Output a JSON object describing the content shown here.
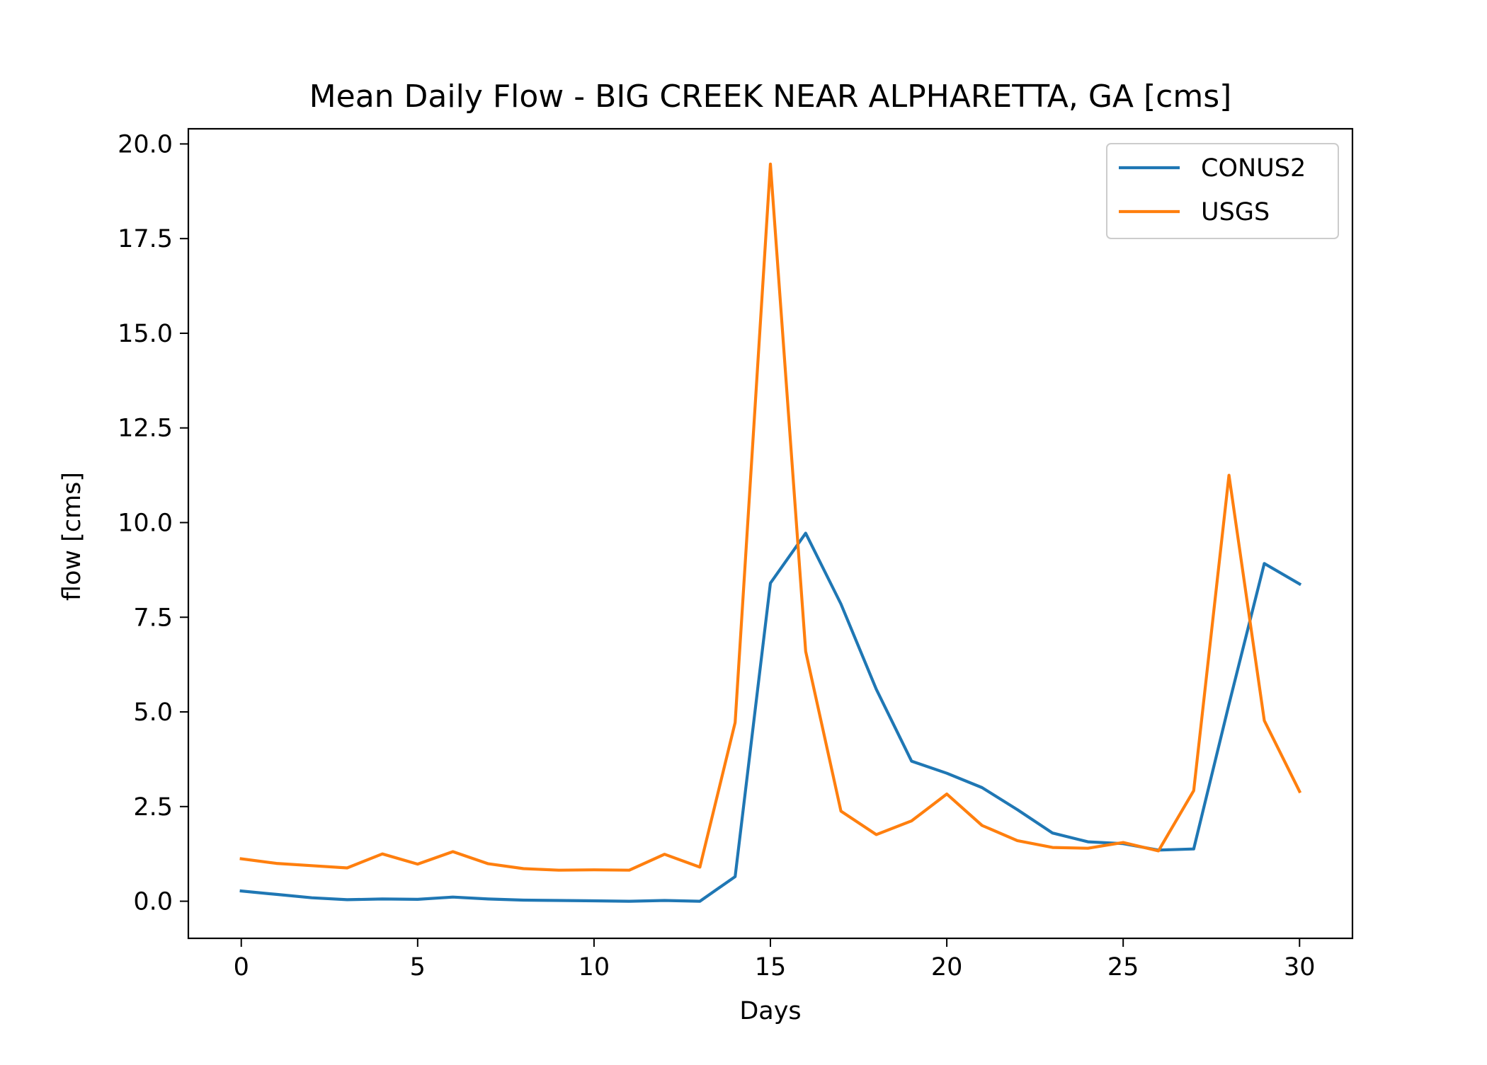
{
  "chart_data": {
    "type": "line",
    "title": "Mean Daily Flow - BIG CREEK NEAR ALPHARETTA, GA [cms]",
    "xlabel": "Days",
    "ylabel": "flow [cms]",
    "xlim": [
      -1.5,
      31.5
    ],
    "ylim": [
      -0.98,
      20.4
    ],
    "xticks": [
      0,
      5,
      10,
      15,
      20,
      25,
      30
    ],
    "xtick_labels": [
      "0",
      "5",
      "10",
      "15",
      "20",
      "25",
      "30"
    ],
    "yticks": [
      0,
      2.5,
      5,
      7.5,
      10,
      12.5,
      15,
      17.5,
      20
    ],
    "ytick_labels": [
      "0.0",
      "2.5",
      "5.0",
      "7.5",
      "10.0",
      "12.5",
      "15.0",
      "17.5",
      "20.0"
    ],
    "grid": false,
    "legend_position": "top-right",
    "x": [
      0,
      1,
      2,
      3,
      4,
      5,
      6,
      7,
      8,
      9,
      10,
      11,
      12,
      13,
      14,
      15,
      16,
      17,
      18,
      19,
      20,
      21,
      22,
      23,
      24,
      25,
      26,
      27,
      28,
      29,
      30
    ],
    "series": [
      {
        "name": "CONUS2",
        "color": "#1f77b4",
        "values": [
          0.27,
          0.18,
          0.09,
          0.04,
          0.06,
          0.05,
          0.11,
          0.06,
          0.03,
          0.02,
          0.01,
          0.0,
          0.02,
          0.0,
          0.65,
          8.4,
          9.72,
          7.85,
          5.6,
          3.7,
          3.38,
          3.0,
          2.42,
          1.8,
          1.57,
          1.52,
          1.35,
          1.38,
          5.2,
          8.92,
          8.38
        ]
      },
      {
        "name": "USGS",
        "color": "#ff7f0e",
        "values": [
          1.12,
          1.0,
          0.94,
          0.88,
          1.25,
          0.98,
          1.31,
          0.99,
          0.86,
          0.82,
          0.83,
          0.82,
          1.24,
          0.9,
          4.72,
          19.47,
          6.6,
          2.38,
          1.76,
          2.12,
          2.83,
          2.0,
          1.6,
          1.42,
          1.4,
          1.55,
          1.33,
          2.92,
          11.25,
          4.77,
          2.9
        ]
      }
    ]
  }
}
